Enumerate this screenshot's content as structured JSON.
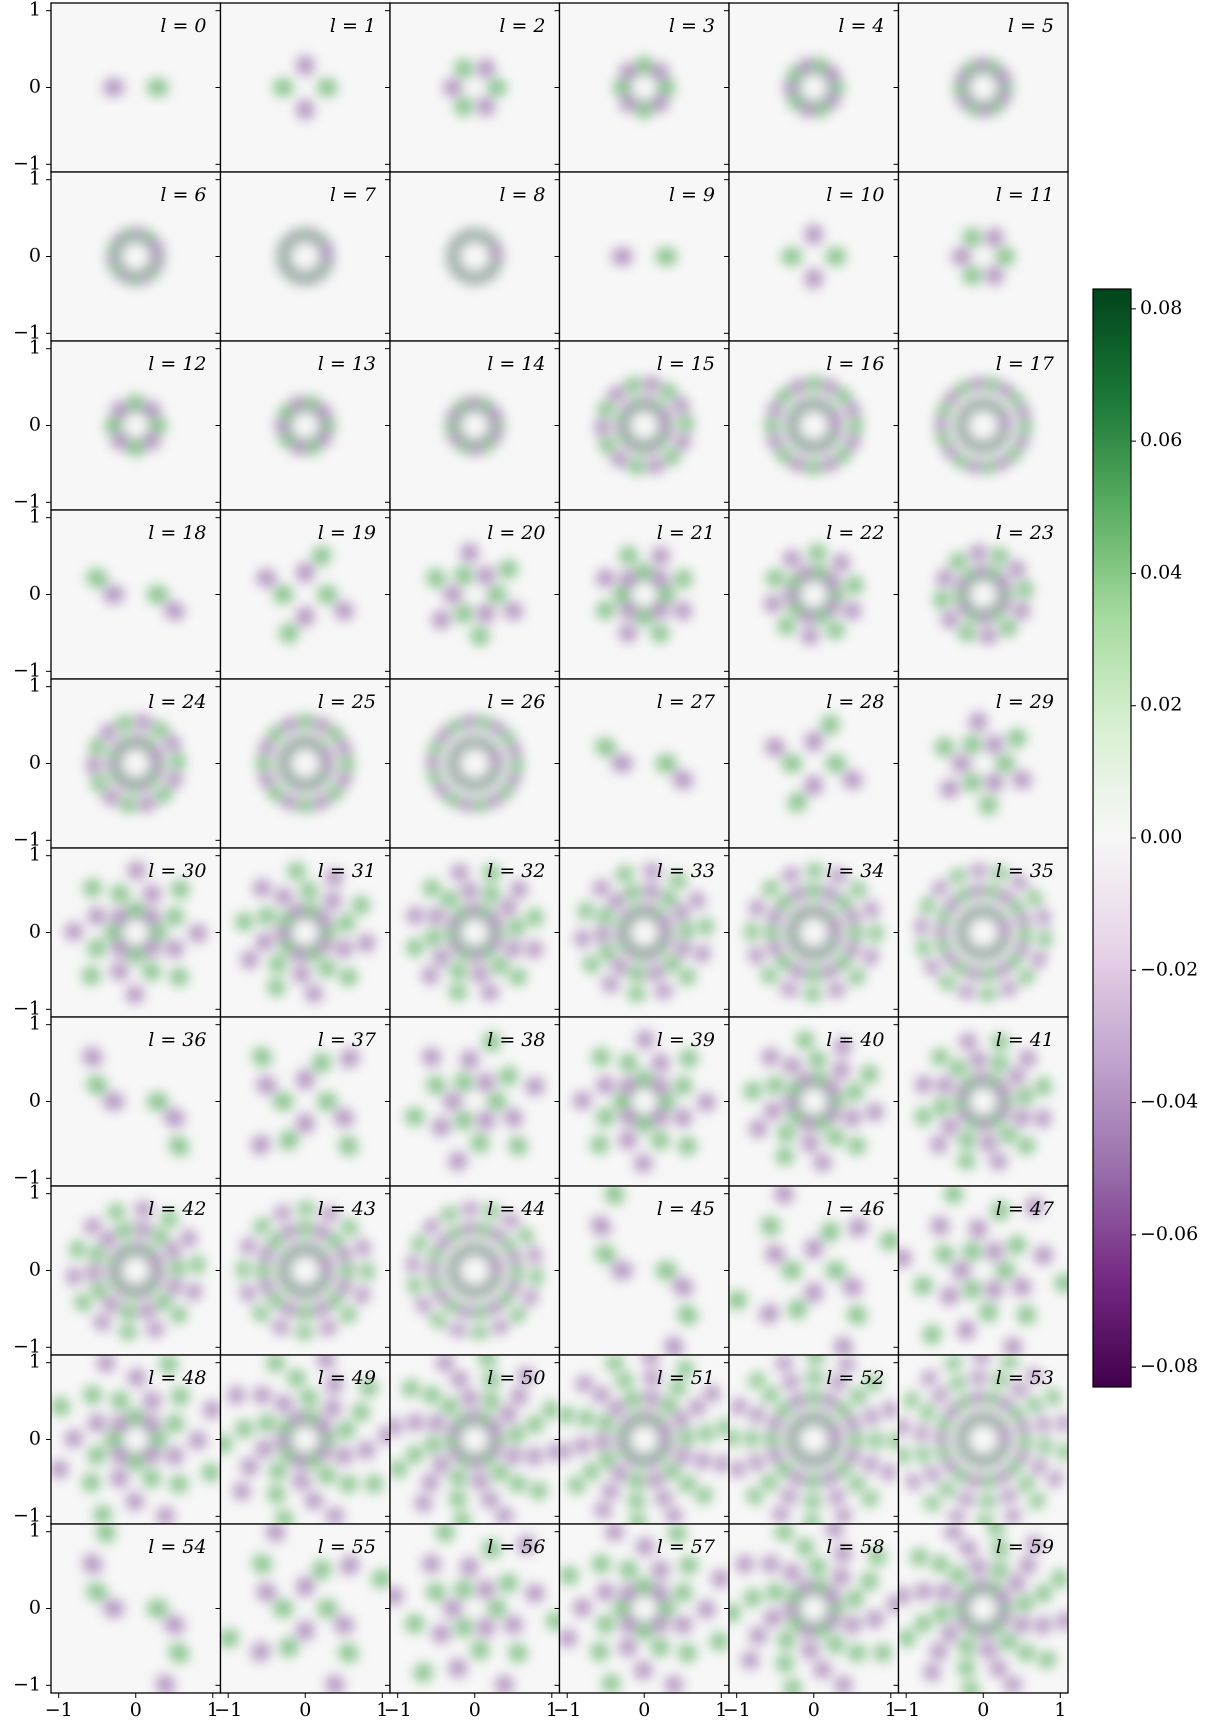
{
  "chart_data": {
    "type": "heatmap-grid",
    "titles": [
      "l = 0",
      "l = 1",
      "l = 2",
      "l = 3",
      "l = 4",
      "l = 5",
      "l = 6",
      "l = 7",
      "l = 8",
      "l = 9",
      "l = 10",
      "l = 11",
      "l = 12",
      "l = 13",
      "l = 14",
      "l = 15",
      "l = 16",
      "l = 17",
      "l = 18",
      "l = 19",
      "l = 20",
      "l = 21",
      "l = 22",
      "l = 23",
      "l = 24",
      "l = 25",
      "l = 26",
      "l = 27",
      "l = 28",
      "l = 29",
      "l = 30",
      "l = 31",
      "l = 32",
      "l = 33",
      "l = 34",
      "l = 35",
      "l = 36",
      "l = 37",
      "l = 38",
      "l = 39",
      "l = 40",
      "l = 41",
      "l = 42",
      "l = 43",
      "l = 44",
      "l = 45",
      "l = 46",
      "l = 47",
      "l = 48",
      "l = 49",
      "l = 50",
      "l = 51",
      "l = 52",
      "l = 53",
      "l = 54",
      "l = 55",
      "l = 56",
      "l = 57",
      "l = 58",
      "l = 59"
    ],
    "xlim": [
      -1.1,
      1.1
    ],
    "ylim": [
      -1.1,
      1.1
    ],
    "xticks": [
      {
        "value": -1,
        "label": "−1"
      },
      0,
      1
    ],
    "yticks": [
      {
        "value": -1,
        "label": "−1"
      },
      0,
      1
    ],
    "colormap": [
      "#40004b",
      "#762a83",
      "#9970ab",
      "#c2a5cf",
      "#e7d4e8",
      "#f7f7f7",
      "#d9f0d3",
      "#a6dba0",
      "#5aae61",
      "#1b7837",
      "#00441b"
    ],
    "clim": [
      -0.083,
      0.083
    ],
    "cticks": [
      0.08,
      0.06,
      0.04,
      0.02,
      {
        "value": 0,
        "label": "0.00"
      },
      {
        "value": -0.02,
        "label": "−0.02"
      },
      {
        "value": -0.04,
        "label": "−0.04"
      },
      {
        "value": -0.06,
        "label": "−0.06"
      },
      {
        "value": -0.08,
        "label": "−0.08"
      }
    ]
  }
}
